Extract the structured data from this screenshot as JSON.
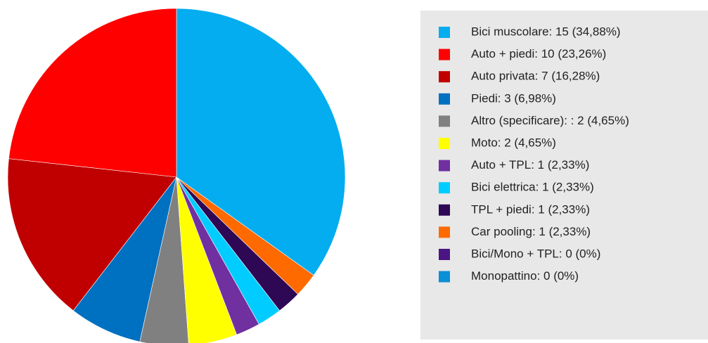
{
  "chart_data": {
    "type": "pie",
    "categories": [
      "Bici muscolare: 15 (34,88%)",
      "Auto + piedi: 10 (23,26%)",
      "Auto privata: 7 (16,28%)",
      "Piedi: 3 (6,98%)",
      "Altro (specificare): : 2 (4,65%)",
      "Moto: 2 (4,65%)",
      "Auto + TPL: 1 (2,33%)",
      "Bici elettrica: 1 (2,33%)",
      "TPL + piedi: 1 (2,33%)",
      "Car pooling: 1 (2,33%)",
      "Bici/Mono + TPL: 0 (0%)",
      "Monopattino: 0 (0%)"
    ],
    "values": [
      15,
      10,
      7,
      3,
      2,
      2,
      1,
      1,
      1,
      1,
      0,
      0
    ],
    "colors": [
      "#03adef",
      "#ff0000",
      "#c00000",
      "#0070c0",
      "#808080",
      "#ffff00",
      "#7030a0",
      "#00ccff",
      "#2e0854",
      "#ff6a00",
      "#4b1583",
      "#0b8fd6"
    ],
    "legend": "right"
  }
}
